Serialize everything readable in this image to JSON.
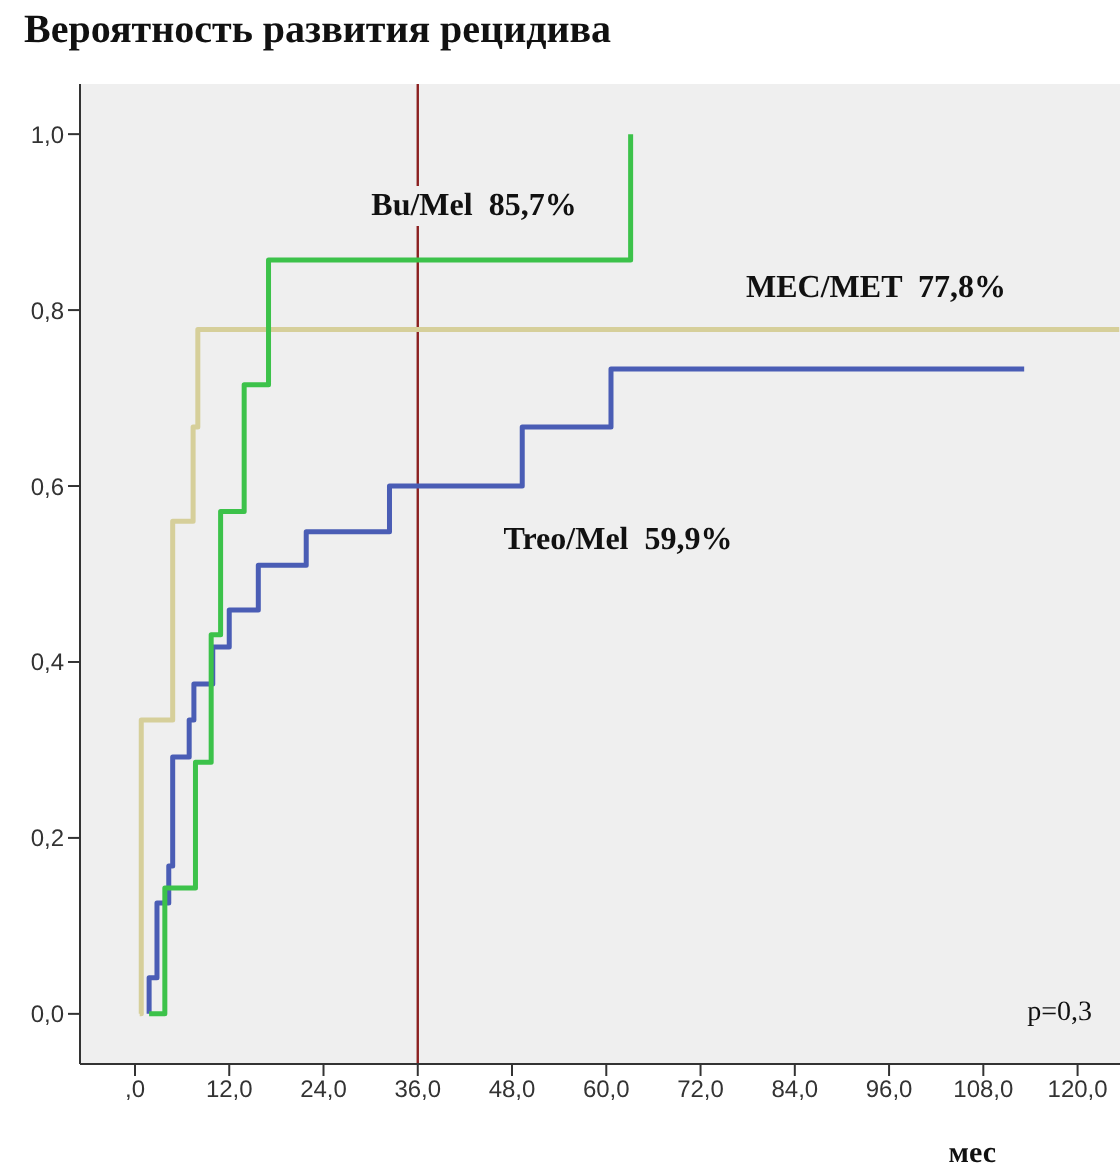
{
  "chart_data": {
    "type": "step",
    "title": "Вероятность развития рецидива",
    "xlabel": "мес",
    "xlim": [
      -7,
      125.4
    ],
    "ylim": [
      -0.057,
      1.057
    ],
    "xticks": [
      {
        "value": 0,
        "label": ",0"
      },
      {
        "value": 12,
        "label": "12,0"
      },
      {
        "value": 24,
        "label": "24,0"
      },
      {
        "value": 36,
        "label": "36,0"
      },
      {
        "value": 48,
        "label": "48,0"
      },
      {
        "value": 60,
        "label": "60,0"
      },
      {
        "value": 72,
        "label": "72,0"
      },
      {
        "value": 84,
        "label": "84,0"
      },
      {
        "value": 96,
        "label": "96,0"
      },
      {
        "value": 108,
        "label": "108,0"
      },
      {
        "value": 120,
        "label": "120,0"
      }
    ],
    "yticks": [
      {
        "value": 0,
        "label": "0,0"
      },
      {
        "value": 0.2,
        "label": "0,2"
      },
      {
        "value": 0.4,
        "label": "0,4"
      },
      {
        "value": 0.6,
        "label": "0,6"
      },
      {
        "value": 0.8,
        "label": "0,8"
      },
      {
        "value": 1,
        "label": "1,0"
      }
    ],
    "series": [
      {
        "color": "#d6cf9a",
        "x": [
          0.6,
          0.8,
          4.8,
          7.4,
          8,
          125.3
        ],
        "values": [
          0,
          0.334,
          0.56,
          0.667,
          0.778,
          0.778
        ]
      },
      {
        "color": "#4a5db5",
        "x": [
          1.8,
          1.8,
          2.8,
          4.3,
          4.8,
          6.9,
          7.5,
          9.9,
          12,
          15.7,
          21.8,
          32.4,
          49.3,
          60.6,
          113.2
        ],
        "values": [
          0,
          0.041,
          0.126,
          0.168,
          0.292,
          0.334,
          0.375,
          0.417,
          0.459,
          0.51,
          0.548,
          0.6,
          0.667,
          0.733,
          0.733
        ]
      },
      {
        "color": "#3cc24a",
        "x": [
          1.8,
          3.8,
          7.7,
          9.7,
          10.9,
          13.9,
          17,
          63.1
        ],
        "values": [
          0,
          0.143,
          0.286,
          0.431,
          0.571,
          0.715,
          0.857,
          1
        ]
      }
    ],
    "ref_lines": [
      {
        "axis": "x",
        "value": 36,
        "color": "#8b2020"
      }
    ],
    "annotations": [
      "Bu/Mel  85,7%",
      "MEC/MET  77,8%",
      "Treo/Mel  59,9%",
      "p=0,3"
    ],
    "grid": false,
    "marker": "none",
    "line_style": "solid"
  }
}
